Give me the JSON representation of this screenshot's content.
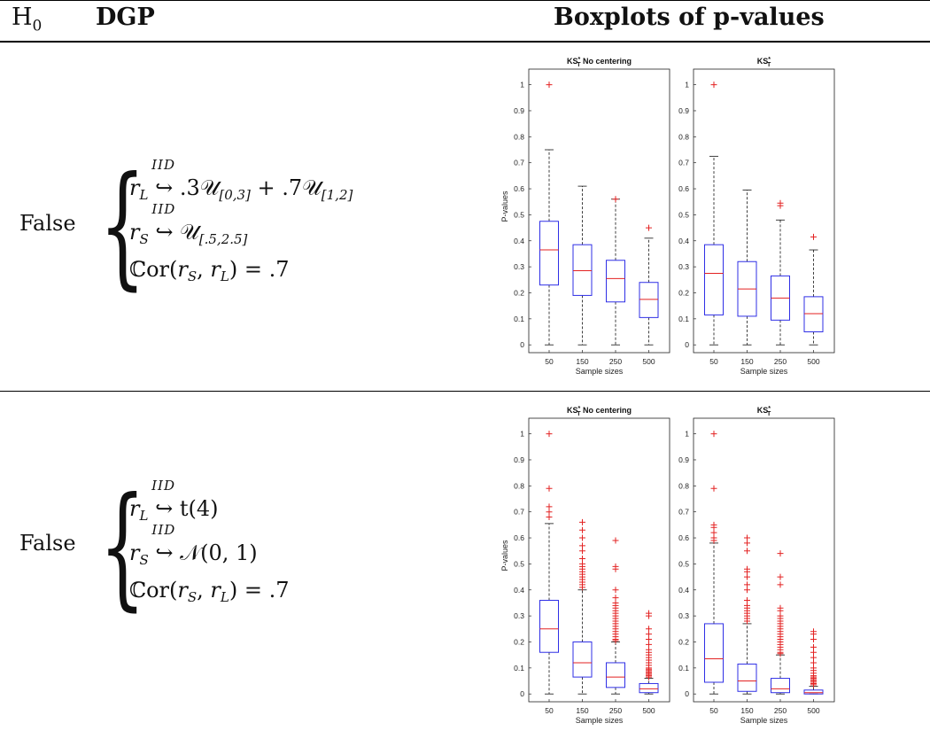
{
  "table": {
    "header": {
      "h0": "H",
      "h0_sub": "0",
      "dgp": "DGP",
      "boxplots": "Boxplots of p-values"
    },
    "rows": [
      {
        "h0": "False",
        "eq1": {
          "lhs": "r",
          "lhs_sub": "L",
          "over": "IID",
          "rhs": ".3𝒰",
          "rhs_sub": "[0,3]",
          "rhs2": " + .7𝒰",
          "rhs2_sub": "[1,2]"
        },
        "eq2": {
          "lhs": "r",
          "lhs_sub": "S",
          "over": "IID",
          "rhs": "𝒰",
          "rhs_sub": "[.5,2.5]"
        },
        "eq3": "ℂor(r_S, r_L) = .7"
      },
      {
        "h0": "False",
        "eq1": {
          "lhs": "r",
          "lhs_sub": "L",
          "over": "IID",
          "rhs": "t(4)"
        },
        "eq2": {
          "lhs": "r",
          "lhs_sub": "S",
          "over": "IID",
          "rhs": "𝒩(0, 1)"
        },
        "eq3": "ℂor(r_S, r_L) = .7"
      }
    ]
  },
  "chart_data": [
    {
      "type": "boxplot",
      "title": "KS*T No centering",
      "xlabel": "Sample sizes",
      "ylabel": "P-values",
      "categories": [
        "50",
        "150",
        "250",
        "500"
      ],
      "ylim": [
        -0.03,
        1.06
      ],
      "yticks": [
        "0",
        "0.1",
        "0.2",
        "0.3",
        "0.4",
        "0.5",
        "0.6",
        "0.7",
        "0.8",
        "0.9",
        "1"
      ],
      "boxes": [
        {
          "q1": 0.23,
          "median": 0.365,
          "q3": 0.475,
          "whisker_low": 0,
          "whisker_high": 0.75,
          "outliers": [
            1.0
          ]
        },
        {
          "q1": 0.19,
          "median": 0.285,
          "q3": 0.385,
          "whisker_low": 0,
          "whisker_high": 0.61,
          "outliers": []
        },
        {
          "q1": 0.165,
          "median": 0.255,
          "q3": 0.325,
          "whisker_low": 0,
          "whisker_high": 0.56,
          "outliers": [
            0.56
          ]
        },
        {
          "q1": 0.105,
          "median": 0.175,
          "q3": 0.24,
          "whisker_low": 0,
          "whisker_high": 0.41,
          "outliers": [
            0.45
          ]
        }
      ]
    },
    {
      "type": "boxplot",
      "title": "KS*T",
      "xlabel": "Sample sizes",
      "ylabel": "",
      "categories": [
        "50",
        "150",
        "250",
        "500"
      ],
      "ylim": [
        -0.03,
        1.06
      ],
      "yticks": [
        "0",
        "0.1",
        "0.2",
        "0.3",
        "0.4",
        "0.5",
        "0.6",
        "0.7",
        "0.8",
        "0.9",
        "1"
      ],
      "boxes": [
        {
          "q1": 0.115,
          "median": 0.275,
          "q3": 0.385,
          "whisker_low": 0,
          "whisker_high": 0.725,
          "outliers": [
            1.0
          ]
        },
        {
          "q1": 0.11,
          "median": 0.215,
          "q3": 0.32,
          "whisker_low": 0,
          "whisker_high": 0.595,
          "outliers": []
        },
        {
          "q1": 0.095,
          "median": 0.18,
          "q3": 0.265,
          "whisker_low": 0,
          "whisker_high": 0.48,
          "outliers": [
            0.535,
            0.545
          ]
        },
        {
          "q1": 0.05,
          "median": 0.12,
          "q3": 0.185,
          "whisker_low": 0,
          "whisker_high": 0.365,
          "outliers": [
            0.415
          ]
        }
      ]
    },
    {
      "type": "boxplot",
      "title": "KS*T No centering",
      "xlabel": "Sample sizes",
      "ylabel": "P-values",
      "categories": [
        "50",
        "150",
        "250",
        "500"
      ],
      "ylim": [
        -0.03,
        1.06
      ],
      "yticks": [
        "0",
        "0.1",
        "0.2",
        "0.3",
        "0.4",
        "0.5",
        "0.6",
        "0.7",
        "0.8",
        "0.9",
        "1"
      ],
      "boxes": [
        {
          "q1": 0.16,
          "median": 0.25,
          "q3": 0.36,
          "whisker_low": 0,
          "whisker_high": 0.655,
          "outliers": [
            0.68,
            0.7,
            0.72,
            0.79,
            1.0
          ]
        },
        {
          "q1": 0.065,
          "median": 0.12,
          "q3": 0.2,
          "whisker_low": 0,
          "whisker_high": 0.4,
          "outliers": [
            0.41,
            0.42,
            0.43,
            0.44,
            0.45,
            0.46,
            0.47,
            0.48,
            0.49,
            0.5,
            0.52,
            0.55,
            0.57,
            0.6,
            0.63,
            0.66
          ]
        },
        {
          "q1": 0.025,
          "median": 0.065,
          "q3": 0.12,
          "whisker_low": 0,
          "whisker_high": 0.2,
          "outliers": [
            0.205,
            0.21,
            0.22,
            0.23,
            0.24,
            0.25,
            0.26,
            0.27,
            0.28,
            0.29,
            0.3,
            0.31,
            0.32,
            0.33,
            0.34,
            0.35,
            0.37,
            0.4,
            0.48,
            0.49,
            0.59
          ]
        },
        {
          "q1": 0.005,
          "median": 0.02,
          "q3": 0.04,
          "whisker_low": 0,
          "whisker_high": 0.06,
          "outliers": [
            0.065,
            0.07,
            0.075,
            0.08,
            0.085,
            0.09,
            0.095,
            0.1,
            0.11,
            0.12,
            0.13,
            0.14,
            0.15,
            0.16,
            0.17,
            0.19,
            0.21,
            0.23,
            0.25,
            0.3,
            0.31
          ]
        }
      ]
    },
    {
      "type": "boxplot",
      "title": "KS*T",
      "xlabel": "Sample sizes",
      "ylabel": "",
      "categories": [
        "50",
        "150",
        "250",
        "500"
      ],
      "ylim": [
        -0.03,
        1.06
      ],
      "yticks": [
        "0",
        "0.1",
        "0.2",
        "0.3",
        "0.4",
        "0.5",
        "0.6",
        "0.7",
        "0.8",
        "0.9",
        "1"
      ],
      "boxes": [
        {
          "q1": 0.045,
          "median": 0.135,
          "q3": 0.27,
          "whisker_low": 0,
          "whisker_high": 0.58,
          "outliers": [
            0.59,
            0.6,
            0.62,
            0.64,
            0.65,
            0.79,
            1.0
          ]
        },
        {
          "q1": 0.01,
          "median": 0.05,
          "q3": 0.115,
          "whisker_low": 0,
          "whisker_high": 0.27,
          "outliers": [
            0.28,
            0.29,
            0.3,
            0.31,
            0.32,
            0.33,
            0.34,
            0.36,
            0.4,
            0.42,
            0.45,
            0.47,
            0.48,
            0.55,
            0.58,
            0.6
          ]
        },
        {
          "q1": 0.005,
          "median": 0.02,
          "q3": 0.06,
          "whisker_low": 0,
          "whisker_high": 0.15,
          "outliers": [
            0.155,
            0.16,
            0.17,
            0.18,
            0.19,
            0.2,
            0.21,
            0.22,
            0.23,
            0.24,
            0.25,
            0.26,
            0.27,
            0.28,
            0.29,
            0.3,
            0.32,
            0.33,
            0.42,
            0.45,
            0.54
          ]
        },
        {
          "q1": 0.0,
          "median": 0.005,
          "q3": 0.015,
          "whisker_low": 0,
          "whisker_high": 0.03,
          "outliers": [
            0.035,
            0.04,
            0.045,
            0.05,
            0.055,
            0.06,
            0.065,
            0.07,
            0.08,
            0.09,
            0.1,
            0.12,
            0.14,
            0.16,
            0.18,
            0.21,
            0.23,
            0.24
          ]
        }
      ]
    }
  ]
}
